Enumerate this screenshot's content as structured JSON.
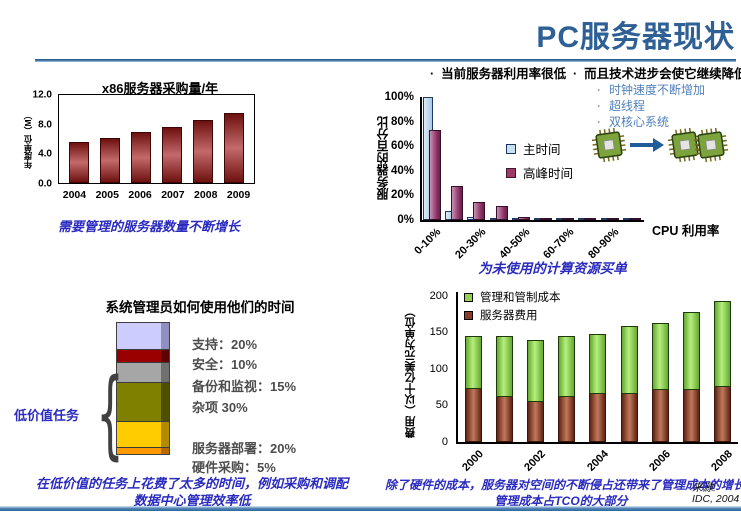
{
  "slide": {
    "title": "PC服务器现状",
    "source_label": "来源:",
    "source_value": "IDC, 2004"
  },
  "bullets": {
    "b1": "当前服务器利用率很低",
    "b2": "而且技术进步会使它继续降低",
    "sub": [
      "时钟速度不断增加",
      "超线程",
      "双核心系统"
    ]
  },
  "captions": {
    "x86": "需要管理的服务器数量不断增长",
    "cpu": "为未使用的计算资源买单",
    "admin1": "在低价值的任务上花费了太多的时间，例如采购和调配",
    "admin2": "数据中心管理效率低",
    "tco1": "除了硬件的成本，服务器对空间的不断侵占还带来了管理成本的增长",
    "tco2": "管理成本占TCO的大部分"
  },
  "chart_data": [
    {
      "type": "bar",
      "title": "x86服务器采购量/年",
      "ylabel": "年度单位（M）",
      "categories": [
        "2004",
        "2005",
        "2006",
        "2007",
        "2008",
        "2009"
      ],
      "values": [
        5.6,
        6.2,
        6.9,
        7.6,
        8.6,
        9.5
      ],
      "yticks": [
        "12.0",
        "8.0",
        "4.0",
        "0.0"
      ],
      "ylim": [
        0,
        12
      ],
      "bar_color": "#993333",
      "grid": false
    },
    {
      "type": "bar",
      "title": "",
      "ylabel": "服务器的百分比",
      "xlabel": "CPU 利用率",
      "categories": [
        "0-10%",
        "10-20%",
        "20-30%",
        "30-40%",
        "40-50%",
        "50-60%",
        "60-70%",
        "70-80%",
        "80-90%",
        "90-100%"
      ],
      "xticks_shown": [
        "0-10%",
        "20-30%",
        "40-50%",
        "60-70%",
        "80-90%"
      ],
      "series": [
        {
          "name": "主时间",
          "color": "#c9dff2",
          "values": [
            100,
            7,
            2.5,
            1,
            0.8,
            0.5,
            0.4,
            0.4,
            0.4,
            0.3
          ]
        },
        {
          "name": "高峰时间",
          "color": "#9e3a64",
          "values": [
            73,
            28,
            15,
            11,
            2.5,
            1.5,
            1,
            1,
            1,
            0.8
          ]
        }
      ],
      "yticks": [
        "100%",
        "80%",
        "60%",
        "40%",
        "20%",
        "0%"
      ],
      "ylim": [
        0,
        100
      ],
      "legend": [
        {
          "label": "主时间",
          "color": "#c9dff2"
        },
        {
          "label": "高峰时间",
          "color": "#9e3a64"
        }
      ],
      "legend_position": "center-right-inside",
      "grid": false
    },
    {
      "type": "stacked-bar",
      "title": "系统管理员如何使用他们的时间",
      "brace_label": "低价值任务",
      "segments": [
        {
          "label": "支持：20%",
          "value": 20,
          "color": "#ccccff",
          "side": "#8f8fc0"
        },
        {
          "label": "安全：10%",
          "value": 10,
          "color": "#990000",
          "side": "#5c0000"
        },
        {
          "label": "备份和监视：15%",
          "value": 15,
          "color": "#a6a6a6",
          "side": "#707070"
        },
        {
          "label": "杂项 30%",
          "value": 30,
          "color": "#7f7f00",
          "side": "#4f4f00"
        },
        {
          "label": "服务器部署：20%",
          "value": 20,
          "color": "#ffcc00",
          "side": "#b38b00"
        },
        {
          "label": "硬件采购：5%",
          "value": 5,
          "color": "#ff9900",
          "side": "#b56a00"
        }
      ]
    },
    {
      "type": "stacked-bar",
      "title": "",
      "ylabel": "费用（以十亿美元为单位）",
      "categories": [
        "2000",
        "2001",
        "2002",
        "2003",
        "2004",
        "2005",
        "2006",
        "2007",
        "2008"
      ],
      "xticks_shown": [
        "2000",
        "2002",
        "2004",
        "2006",
        "2008"
      ],
      "series": [
        {
          "name": "服务器费用",
          "color": "#8a3c28",
          "values": [
            72,
            61,
            55,
            61,
            65,
            65,
            71,
            71,
            75
          ]
        },
        {
          "name": "管理和管制成本",
          "color": "#92d050",
          "values": [
            73,
            84,
            85,
            84,
            83,
            93,
            92,
            107,
            118
          ]
        }
      ],
      "totals": [
        145,
        145,
        140,
        145,
        148,
        158,
        163,
        178,
        193
      ],
      "yticks": [
        "200",
        "150",
        "100",
        "50",
        "0"
      ],
      "ylim": [
        0,
        205
      ],
      "legend": [
        {
          "label": "管理和管制成本",
          "color": "#92d050"
        },
        {
          "label": "服务器费用",
          "color": "#8a3c28"
        }
      ],
      "legend_position": "top-left-inside",
      "grid": false
    }
  ]
}
